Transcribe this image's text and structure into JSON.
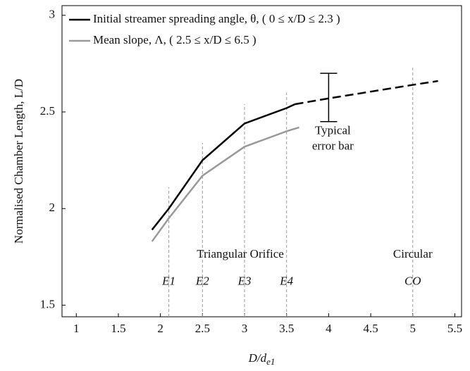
{
  "chart_data": {
    "type": "line",
    "x_label": {
      "main": "D/d",
      "sub": "e1"
    },
    "y_label": "Normalised Chamber Length, L/D",
    "xlim": [
      0.83,
      5.58
    ],
    "ylim": [
      1.44,
      3.05
    ],
    "xticks": [
      1,
      1.5,
      2,
      2.5,
      3,
      3.5,
      4,
      4.5,
      5,
      5.5
    ],
    "yticks": [
      1.5,
      2,
      2.5,
      3
    ],
    "legend": "upper left",
    "series": [
      {
        "name": "Initial streamer spreading angle, θ, ( 0 ≤ x/D ≤ 2.3 )",
        "color": "#000000",
        "x": [
          1.9,
          2.1,
          2.5,
          3.0,
          3.5,
          3.6
        ],
        "values": [
          1.89,
          2.0,
          2.25,
          2.44,
          2.52,
          2.54
        ],
        "extension": {
          "style": "dashed",
          "x": [
            3.6,
            4.0,
            5.0,
            5.3
          ],
          "values": [
            2.54,
            2.57,
            2.64,
            2.66
          ]
        }
      },
      {
        "name": "Mean slope, Λ, ( 2.5 ≤ x/D ≤ 6.5 )",
        "color": "#999999",
        "x": [
          1.9,
          2.1,
          2.5,
          3.0,
          3.5,
          3.65
        ],
        "values": [
          1.83,
          1.95,
          2.17,
          2.32,
          2.4,
          2.42
        ]
      }
    ],
    "guides": [
      {
        "x": 2.1,
        "top": 2.11
      },
      {
        "x": 2.5,
        "top": 2.34
      },
      {
        "x": 3.0,
        "top": 2.54
      },
      {
        "x": 3.5,
        "top": 2.6
      },
      {
        "x": 5.0,
        "top": 2.73
      }
    ],
    "error_bar": {
      "x": 4.0,
      "low": 2.45,
      "high": 2.7
    },
    "annotations": [
      {
        "text": "Triangular Orifice",
        "x": 2.95,
        "y": 1.76,
        "italic": false
      },
      {
        "text": "Circular",
        "x": 5.0,
        "y": 1.76,
        "italic": false
      },
      {
        "text": "E1",
        "x": 2.1,
        "y": 1.62,
        "italic": true
      },
      {
        "text": "E2",
        "x": 2.5,
        "y": 1.62,
        "italic": true
      },
      {
        "text": "E3",
        "x": 3.0,
        "y": 1.62,
        "italic": true
      },
      {
        "text": "E4",
        "x": 3.5,
        "y": 1.62,
        "italic": true
      },
      {
        "text": "CO",
        "x": 5.0,
        "y": 1.62,
        "italic": true
      },
      {
        "text": "Typical",
        "x": 4.05,
        "y": 2.4,
        "italic": false
      },
      {
        "text": "error bar",
        "x": 4.05,
        "y": 2.32,
        "italic": false
      }
    ]
  }
}
